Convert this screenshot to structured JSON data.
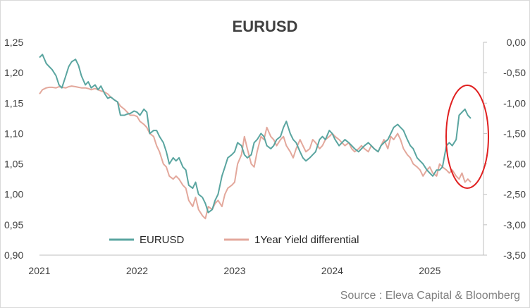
{
  "chart_data": {
    "type": "line",
    "title": "EURUSD",
    "source": "Source : Eleva Capital & Bloomberg",
    "x_axis": {
      "labels": [
        "2021",
        "2022",
        "2023",
        "2024",
        "2025"
      ],
      "range": [
        2021.0,
        2025.55
      ]
    },
    "y_left": {
      "range": [
        0.9,
        1.25
      ],
      "tick_labels": [
        "1,25",
        "1,20",
        "1,15",
        "1,10",
        "1,05",
        "1,00",
        "0,95",
        "0,90"
      ]
    },
    "y_right": {
      "range": [
        -3.5,
        0.0
      ],
      "tick_labels": [
        "0,00",
        "-0,50",
        "-1,00",
        "-1,50",
        "-2,00",
        "-2,50",
        "-3,00",
        "-3,50"
      ]
    },
    "legend_position": "bottom-center",
    "grid": false,
    "colors": {
      "eurusd": "#5aa5a0",
      "yield": "#e3a89c",
      "ellipse": "#e02020",
      "axis": "#bfbfbf"
    },
    "series": [
      {
        "name": "EURUSD",
        "axis": "left",
        "color": "#5aa5a0",
        "points": [
          [
            2021.0,
            1.225
          ],
          [
            2021.03,
            1.23
          ],
          [
            2021.07,
            1.215
          ],
          [
            2021.1,
            1.21
          ],
          [
            2021.13,
            1.205
          ],
          [
            2021.17,
            1.195
          ],
          [
            2021.2,
            1.18
          ],
          [
            2021.23,
            1.175
          ],
          [
            2021.27,
            1.195
          ],
          [
            2021.3,
            1.21
          ],
          [
            2021.33,
            1.218
          ],
          [
            2021.37,
            1.222
          ],
          [
            2021.4,
            1.212
          ],
          [
            2021.43,
            1.195
          ],
          [
            2021.47,
            1.18
          ],
          [
            2021.5,
            1.185
          ],
          [
            2021.53,
            1.175
          ],
          [
            2021.57,
            1.18
          ],
          [
            2021.6,
            1.172
          ],
          [
            2021.63,
            1.178
          ],
          [
            2021.67,
            1.165
          ],
          [
            2021.7,
            1.158
          ],
          [
            2021.73,
            1.16
          ],
          [
            2021.77,
            1.155
          ],
          [
            2021.8,
            1.152
          ],
          [
            2021.83,
            1.13
          ],
          [
            2021.87,
            1.13
          ],
          [
            2021.9,
            1.132
          ],
          [
            2021.93,
            1.133
          ],
          [
            2021.97,
            1.137
          ],
          [
            2022.0,
            1.135
          ],
          [
            2022.03,
            1.13
          ],
          [
            2022.07,
            1.14
          ],
          [
            2022.1,
            1.135
          ],
          [
            2022.13,
            1.1
          ],
          [
            2022.17,
            1.105
          ],
          [
            2022.2,
            1.105
          ],
          [
            2022.23,
            1.095
          ],
          [
            2022.27,
            1.085
          ],
          [
            2022.3,
            1.07
          ],
          [
            2022.33,
            1.05
          ],
          [
            2022.37,
            1.06
          ],
          [
            2022.4,
            1.055
          ],
          [
            2022.43,
            1.06
          ],
          [
            2022.47,
            1.045
          ],
          [
            2022.5,
            1.04
          ],
          [
            2022.53,
            1.015
          ],
          [
            2022.57,
            1.01
          ],
          [
            2022.6,
            1.02
          ],
          [
            2022.63,
            1.0
          ],
          [
            2022.67,
            0.995
          ],
          [
            2022.7,
            0.985
          ],
          [
            2022.73,
            0.97
          ],
          [
            2022.77,
            0.975
          ],
          [
            2022.8,
            0.99
          ],
          [
            2022.83,
            1.0
          ],
          [
            2022.87,
            1.03
          ],
          [
            2022.9,
            1.045
          ],
          [
            2022.93,
            1.06
          ],
          [
            2022.97,
            1.065
          ],
          [
            2023.0,
            1.07
          ],
          [
            2023.03,
            1.085
          ],
          [
            2023.07,
            1.08
          ],
          [
            2023.1,
            1.065
          ],
          [
            2023.13,
            1.06
          ],
          [
            2023.17,
            1.065
          ],
          [
            2023.2,
            1.085
          ],
          [
            2023.23,
            1.09
          ],
          [
            2023.27,
            1.1
          ],
          [
            2023.3,
            1.095
          ],
          [
            2023.33,
            1.08
          ],
          [
            2023.37,
            1.075
          ],
          [
            2023.4,
            1.08
          ],
          [
            2023.43,
            1.09
          ],
          [
            2023.47,
            1.095
          ],
          [
            2023.5,
            1.11
          ],
          [
            2023.53,
            1.12
          ],
          [
            2023.57,
            1.1
          ],
          [
            2023.6,
            1.09
          ],
          [
            2023.63,
            1.085
          ],
          [
            2023.67,
            1.07
          ],
          [
            2023.7,
            1.06
          ],
          [
            2023.73,
            1.055
          ],
          [
            2023.77,
            1.06
          ],
          [
            2023.8,
            1.065
          ],
          [
            2023.83,
            1.07
          ],
          [
            2023.87,
            1.09
          ],
          [
            2023.9,
            1.095
          ],
          [
            2023.93,
            1.09
          ],
          [
            2023.97,
            1.105
          ],
          [
            2024.0,
            1.1
          ],
          [
            2024.03,
            1.09
          ],
          [
            2024.07,
            1.08
          ],
          [
            2024.1,
            1.085
          ],
          [
            2024.13,
            1.09
          ],
          [
            2024.17,
            1.085
          ],
          [
            2024.2,
            1.08
          ],
          [
            2024.23,
            1.075
          ],
          [
            2024.27,
            1.07
          ],
          [
            2024.3,
            1.075
          ],
          [
            2024.33,
            1.08
          ],
          [
            2024.37,
            1.085
          ],
          [
            2024.4,
            1.08
          ],
          [
            2024.43,
            1.075
          ],
          [
            2024.47,
            1.07
          ],
          [
            2024.5,
            1.08
          ],
          [
            2024.53,
            1.085
          ],
          [
            2024.57,
            1.09
          ],
          [
            2024.6,
            1.1
          ],
          [
            2024.63,
            1.11
          ],
          [
            2024.67,
            1.115
          ],
          [
            2024.7,
            1.11
          ],
          [
            2024.73,
            1.105
          ],
          [
            2024.77,
            1.09
          ],
          [
            2024.8,
            1.08
          ],
          [
            2024.83,
            1.075
          ],
          [
            2024.87,
            1.06
          ],
          [
            2024.9,
            1.055
          ],
          [
            2024.93,
            1.05
          ],
          [
            2024.97,
            1.04
          ],
          [
            2025.0,
            1.035
          ],
          [
            2025.03,
            1.03
          ],
          [
            2025.07,
            1.04
          ],
          [
            2025.1,
            1.04
          ],
          [
            2025.13,
            1.045
          ],
          [
            2025.17,
            1.08
          ],
          [
            2025.2,
            1.085
          ],
          [
            2025.23,
            1.08
          ],
          [
            2025.27,
            1.09
          ],
          [
            2025.3,
            1.13
          ],
          [
            2025.33,
            1.135
          ],
          [
            2025.36,
            1.14
          ],
          [
            2025.39,
            1.13
          ],
          [
            2025.42,
            1.125
          ]
        ]
      },
      {
        "name": "1Year Yield differential",
        "axis": "right",
        "color": "#e3a89c",
        "points": [
          [
            2021.0,
            -0.85
          ],
          [
            2021.03,
            -0.78
          ],
          [
            2021.07,
            -0.75
          ],
          [
            2021.1,
            -0.74
          ],
          [
            2021.13,
            -0.74
          ],
          [
            2021.17,
            -0.75
          ],
          [
            2021.2,
            -0.73
          ],
          [
            2021.23,
            -0.74
          ],
          [
            2021.27,
            -0.75
          ],
          [
            2021.3,
            -0.73
          ],
          [
            2021.33,
            -0.72
          ],
          [
            2021.37,
            -0.73
          ],
          [
            2021.4,
            -0.74
          ],
          [
            2021.43,
            -0.75
          ],
          [
            2021.47,
            -0.75
          ],
          [
            2021.5,
            -0.76
          ],
          [
            2021.53,
            -0.78
          ],
          [
            2021.57,
            -0.76
          ],
          [
            2021.6,
            -0.78
          ],
          [
            2021.63,
            -0.8
          ],
          [
            2021.67,
            -0.82
          ],
          [
            2021.7,
            -0.85
          ],
          [
            2021.73,
            -0.9
          ],
          [
            2021.77,
            -0.95
          ],
          [
            2021.8,
            -0.98
          ],
          [
            2021.83,
            -1.05
          ],
          [
            2021.87,
            -1.1
          ],
          [
            2021.9,
            -1.15
          ],
          [
            2021.93,
            -1.2
          ],
          [
            2021.97,
            -1.2
          ],
          [
            2022.0,
            -1.22
          ],
          [
            2022.03,
            -1.3
          ],
          [
            2022.07,
            -1.35
          ],
          [
            2022.1,
            -1.4
          ],
          [
            2022.13,
            -1.5
          ],
          [
            2022.17,
            -1.55
          ],
          [
            2022.2,
            -1.7
          ],
          [
            2022.23,
            -1.8
          ],
          [
            2022.27,
            -2.0
          ],
          [
            2022.3,
            -2.05
          ],
          [
            2022.33,
            -2.2
          ],
          [
            2022.37,
            -2.25
          ],
          [
            2022.4,
            -2.2
          ],
          [
            2022.43,
            -2.25
          ],
          [
            2022.47,
            -2.35
          ],
          [
            2022.5,
            -2.4
          ],
          [
            2022.53,
            -2.6
          ],
          [
            2022.57,
            -2.7
          ],
          [
            2022.6,
            -2.55
          ],
          [
            2022.63,
            -2.75
          ],
          [
            2022.67,
            -2.85
          ],
          [
            2022.7,
            -2.9
          ],
          [
            2022.73,
            -2.7
          ],
          [
            2022.77,
            -2.75
          ],
          [
            2022.8,
            -2.65
          ],
          [
            2022.83,
            -2.6
          ],
          [
            2022.87,
            -2.7
          ],
          [
            2022.9,
            -2.5
          ],
          [
            2022.93,
            -2.4
          ],
          [
            2022.97,
            -2.35
          ],
          [
            2023.0,
            -2.3
          ],
          [
            2023.03,
            -2.0
          ],
          [
            2023.07,
            -1.85
          ],
          [
            2023.1,
            -1.55
          ],
          [
            2023.13,
            -1.75
          ],
          [
            2023.17,
            -2.0
          ],
          [
            2023.2,
            -2.05
          ],
          [
            2023.23,
            -1.8
          ],
          [
            2023.27,
            -1.55
          ],
          [
            2023.3,
            -1.6
          ],
          [
            2023.33,
            -1.4
          ],
          [
            2023.37,
            -1.55
          ],
          [
            2023.4,
            -1.6
          ],
          [
            2023.43,
            -1.7
          ],
          [
            2023.47,
            -1.6
          ],
          [
            2023.5,
            -1.55
          ],
          [
            2023.53,
            -1.7
          ],
          [
            2023.57,
            -1.8
          ],
          [
            2023.6,
            -1.9
          ],
          [
            2023.63,
            -1.75
          ],
          [
            2023.67,
            -1.6
          ],
          [
            2023.7,
            -1.7
          ],
          [
            2023.73,
            -1.8
          ],
          [
            2023.77,
            -1.75
          ],
          [
            2023.8,
            -1.6
          ],
          [
            2023.83,
            -1.65
          ],
          [
            2023.87,
            -1.75
          ],
          [
            2023.9,
            -1.7
          ],
          [
            2023.93,
            -1.6
          ],
          [
            2023.97,
            -1.55
          ],
          [
            2024.0,
            -1.5
          ],
          [
            2024.03,
            -1.55
          ],
          [
            2024.07,
            -1.6
          ],
          [
            2024.1,
            -1.65
          ],
          [
            2024.13,
            -1.7
          ],
          [
            2024.17,
            -1.65
          ],
          [
            2024.2,
            -1.75
          ],
          [
            2024.23,
            -1.8
          ],
          [
            2024.27,
            -1.75
          ],
          [
            2024.3,
            -1.7
          ],
          [
            2024.33,
            -1.75
          ],
          [
            2024.37,
            -1.8
          ],
          [
            2024.4,
            -1.7
          ],
          [
            2024.43,
            -1.75
          ],
          [
            2024.47,
            -1.8
          ],
          [
            2024.5,
            -1.7
          ],
          [
            2024.53,
            -1.6
          ],
          [
            2024.57,
            -1.75
          ],
          [
            2024.6,
            -1.55
          ],
          [
            2024.63,
            -1.6
          ],
          [
            2024.67,
            -1.5
          ],
          [
            2024.7,
            -1.6
          ],
          [
            2024.73,
            -1.75
          ],
          [
            2024.77,
            -1.85
          ],
          [
            2024.8,
            -1.9
          ],
          [
            2024.83,
            -2.0
          ],
          [
            2024.87,
            -2.05
          ],
          [
            2024.9,
            -2.1
          ],
          [
            2024.93,
            -2.2
          ],
          [
            2024.97,
            -2.1
          ],
          [
            2025.0,
            -2.05
          ],
          [
            2025.03,
            -2.15
          ],
          [
            2025.07,
            -2.2
          ],
          [
            2025.1,
            -2.0
          ],
          [
            2025.13,
            -2.05
          ],
          [
            2025.17,
            -2.1
          ],
          [
            2025.2,
            -2.15
          ],
          [
            2025.23,
            -2.1
          ],
          [
            2025.27,
            -2.2
          ],
          [
            2025.3,
            -2.25
          ],
          [
            2025.33,
            -2.15
          ],
          [
            2025.36,
            -2.3
          ],
          [
            2025.39,
            -2.25
          ],
          [
            2025.42,
            -2.3
          ]
        ]
      }
    ]
  }
}
